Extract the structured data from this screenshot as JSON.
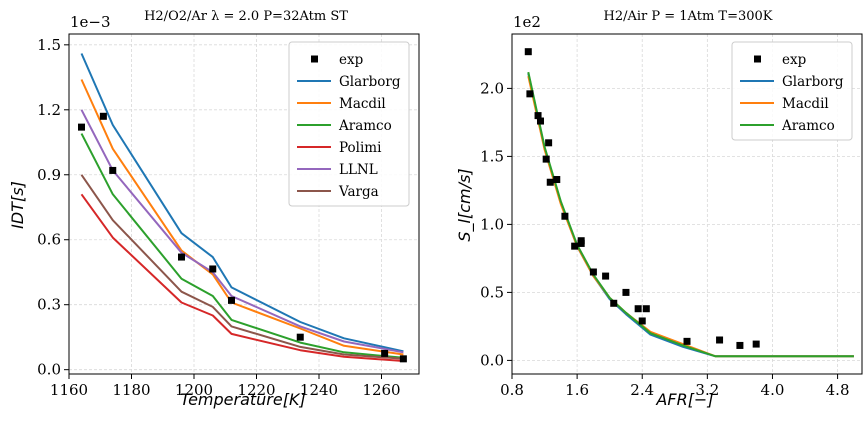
{
  "chart_data": [
    {
      "type": "line",
      "title": "H2/O2/Ar λ = 2.0 P=32Atm ST",
      "xlabel": "Temperature[K]",
      "ylabel": "IDT[s]",
      "y_scale_label": "1e−3",
      "xlim": [
        1160,
        1272
      ],
      "ylim": [
        -2e-05,
        0.00155
      ],
      "x_ticks": [
        1160,
        1180,
        1200,
        1220,
        1240,
        1260
      ],
      "x_tick_labels": [
        "1160",
        "1180",
        "1200",
        "1220",
        "1240",
        "1260"
      ],
      "y_ticks": [
        0,
        0.0003,
        0.0006,
        0.0009,
        0.0012,
        0.0015
      ],
      "y_tick_labels": [
        "0.0",
        "0.3",
        "0.6",
        "0.9",
        "1.2",
        "1.5"
      ],
      "grid": true,
      "legend_position": "top-right",
      "scatter": {
        "name": "exp",
        "x": [
          1164,
          1171,
          1174,
          1196,
          1206,
          1212,
          1234,
          1261,
          1267
        ],
        "y": [
          0.00112,
          0.00117,
          0.00092,
          0.00052,
          0.000465,
          0.00032,
          0.00015,
          7.5e-05,
          5e-05
        ]
      },
      "series": [
        {
          "name": "Glarborg",
          "color": "#1f77b4",
          "x": [
            1164,
            1174,
            1196,
            1206,
            1212,
            1234,
            1248,
            1267
          ],
          "y": [
            0.00146,
            0.00113,
            0.00063,
            0.00052,
            0.00038,
            0.00022,
            0.000145,
            8.5e-05
          ]
        },
        {
          "name": "Macdil",
          "color": "#ff7f0e",
          "x": [
            1164,
            1174,
            1196,
            1206,
            1212,
            1234,
            1248,
            1267
          ],
          "y": [
            0.00134,
            0.00102,
            0.00055,
            0.00044,
            0.00031,
            0.00019,
            0.00011,
            7e-05
          ]
        },
        {
          "name": "Aramco",
          "color": "#2ca02c",
          "x": [
            1164,
            1174,
            1196,
            1206,
            1212,
            1234,
            1248,
            1267
          ],
          "y": [
            0.00109,
            0.00081,
            0.00042,
            0.00034,
            0.00023,
            0.000125,
            8e-05,
            5.5e-05
          ]
        },
        {
          "name": "Polimi",
          "color": "#d62728",
          "x": [
            1164,
            1174,
            1196,
            1206,
            1212,
            1234,
            1248,
            1267
          ],
          "y": [
            0.00081,
            0.00061,
            0.00031,
            0.00025,
            0.000165,
            9e-05,
            6e-05,
            4e-05
          ]
        },
        {
          "name": "LLNL",
          "color": "#9467bd",
          "x": [
            1164,
            1174,
            1196,
            1206,
            1212,
            1234,
            1248,
            1267
          ],
          "y": [
            0.0012,
            0.00092,
            0.00054,
            0.00045,
            0.00034,
            0.0002,
            0.00013,
            8e-05
          ]
        },
        {
          "name": "Varga",
          "color": "#8c564b",
          "x": [
            1164,
            1174,
            1196,
            1206,
            1212,
            1234,
            1248,
            1267
          ],
          "y": [
            0.0009,
            0.00069,
            0.00036,
            0.00029,
            0.0002,
            0.000105,
            7e-05,
            5e-05
          ]
        }
      ]
    },
    {
      "type": "line",
      "title": "H2/Air P = 1Atm T=300K",
      "xlabel": "AFR[−]",
      "ylabel": "S_l[cm/s]",
      "y_scale_label": "1e2",
      "xlim": [
        0.8,
        5.1
      ],
      "ylim": [
        -10,
        240
      ],
      "x_ticks": [
        0.8,
        1.6,
        2.4,
        3.2,
        4.0,
        4.8
      ],
      "x_tick_labels": [
        "0.8",
        "1.6",
        "2.4",
        "3.2",
        "4.0",
        "4.8"
      ],
      "y_ticks": [
        0,
        50,
        100,
        150,
        200
      ],
      "y_tick_labels": [
        "0.0",
        "0.5",
        "1.0",
        "1.5",
        "2.0"
      ],
      "grid": true,
      "legend_position": "top-right",
      "scatter": {
        "name": "exp",
        "x": [
          1.0,
          1.02,
          1.12,
          1.15,
          1.22,
          1.25,
          1.27,
          1.35,
          1.45,
          1.57,
          1.65,
          1.65,
          1.8,
          1.95,
          2.05,
          2.2,
          2.35,
          2.4,
          2.45,
          2.95,
          3.35,
          3.6,
          3.8
        ],
        "y": [
          227,
          196,
          180,
          176,
          148,
          160,
          131,
          133,
          106,
          84,
          88,
          86,
          65,
          62,
          42,
          50,
          38,
          29,
          38,
          14,
          15,
          11,
          12
        ]
      },
      "series": [
        {
          "name": "Glarborg",
          "color": "#1f77b4",
          "x": [
            1.0,
            1.2,
            1.4,
            1.6,
            1.8,
            2.0,
            2.2,
            2.5,
            2.9,
            3.3,
            5.0
          ],
          "y": [
            211,
            156,
            116,
            84,
            62,
            45,
            34,
            19,
            10,
            3,
            3
          ]
        },
        {
          "name": "Macdil",
          "color": "#ff7f0e",
          "x": [
            1.0,
            1.2,
            1.4,
            1.6,
            1.8,
            2.0,
            2.2,
            2.5,
            2.9,
            3.3,
            5.0
          ],
          "y": [
            209,
            155,
            115,
            84,
            62,
            46,
            35,
            21,
            12,
            3,
            3
          ]
        },
        {
          "name": "Aramco",
          "color": "#2ca02c",
          "x": [
            1.0,
            1.2,
            1.4,
            1.6,
            1.8,
            2.0,
            2.2,
            2.5,
            2.9,
            3.3,
            5.0
          ],
          "y": [
            212,
            157,
            117,
            85,
            63,
            46,
            35,
            20,
            11,
            3,
            3
          ]
        }
      ]
    }
  ]
}
